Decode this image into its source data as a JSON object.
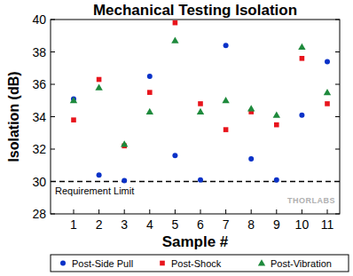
{
  "chart_data": {
    "type": "scatter",
    "title": "Mechanical Testing Isolation",
    "x_label": "Sample #",
    "y_label": "Isolation (dB)",
    "categories": [
      "1",
      "2",
      "3",
      "4",
      "5",
      "6",
      "7",
      "8",
      "9",
      "10",
      "11"
    ],
    "series": [
      {
        "name": "Post-Side Pull",
        "color": "#0a32c8",
        "marker": "circle",
        "values": [
          35.1,
          30.4,
          30.05,
          36.5,
          31.6,
          30.1,
          38.4,
          31.4,
          30.1,
          34.1,
          37.4
        ]
      },
      {
        "name": "Post-Shock",
        "color": "#e8141c",
        "marker": "square",
        "values": [
          33.8,
          36.3,
          32.2,
          35.5,
          39.8,
          34.8,
          33.2,
          34.3,
          33.5,
          37.6,
          34.8
        ]
      },
      {
        "name": "Post-Vibration",
        "color": "#1e8a3c",
        "marker": "triangle",
        "values": [
          35.0,
          35.8,
          32.3,
          34.3,
          38.7,
          34.3,
          35.0,
          34.5,
          34.1,
          38.3,
          35.5
        ]
      }
    ],
    "ylim": [
      28,
      40
    ],
    "yticks": [
      28,
      30,
      32,
      34,
      36,
      38,
      40
    ],
    "annotations": [
      {
        "text": "Requirement Limit",
        "y": 30
      },
      {
        "text": "THORLABS"
      }
    ],
    "legend": "bottom",
    "grid": false
  }
}
